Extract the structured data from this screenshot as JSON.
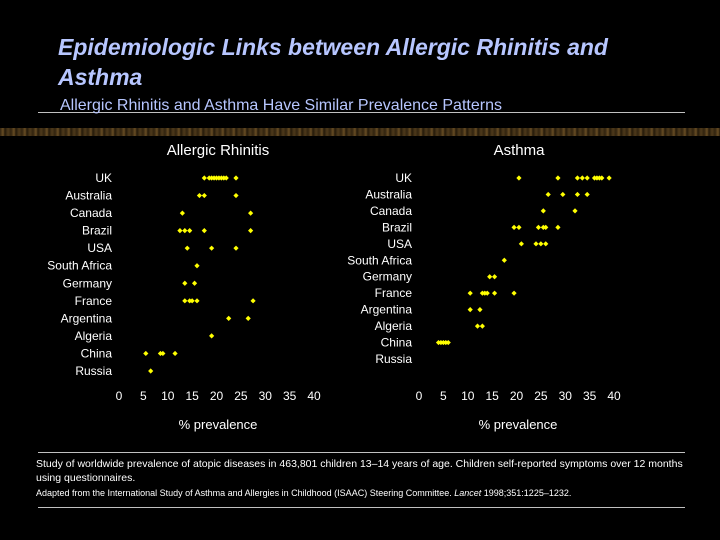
{
  "slide": {
    "title": "Epidemiologic Links between Allergic Rhinitis and Asthma",
    "subtitle": "Allergic Rhinitis and Asthma Have Similar Prevalence Patterns",
    "footnote": "Study of worldwide prevalence of atopic diseases in 463,801 children 13–14 years of age. Children self-reported symptoms over 12 months using questionnaires.",
    "source_prefix": "Adapted from the International Study of Asthma and Allergies in Childhood (ISAAC) Steering Committee. ",
    "source_journal": "Lancet",
    "source_citation": " 1998;351:1225–1232."
  },
  "colors": {
    "background": "#000000",
    "title": "#b7c6ff",
    "point": "#ffff00",
    "text": "#ffffff"
  },
  "chart_data": [
    {
      "type": "scatter",
      "title": "Allergic Rhinitis",
      "xlabel": "% prevalence",
      "xlim": [
        0,
        40
      ],
      "xticks": [
        0,
        5,
        10,
        15,
        20,
        25,
        30,
        35,
        40
      ],
      "categories": [
        "UK",
        "Australia",
        "Canada",
        "Brazil",
        "USA",
        "South Africa",
        "Germany",
        "France",
        "Argentina",
        "Algeria",
        "China",
        "Russia"
      ],
      "series": [
        {
          "category": "UK",
          "values": [
            17.5,
            18.5,
            19,
            19.5,
            20,
            20.5,
            21,
            21.5,
            22,
            24
          ]
        },
        {
          "category": "Australia",
          "values": [
            16.5,
            17.5,
            24
          ]
        },
        {
          "category": "Canada",
          "values": [
            13,
            27
          ]
        },
        {
          "category": "Brazil",
          "values": [
            12.5,
            13.5,
            14.5,
            17.5,
            27
          ]
        },
        {
          "category": "USA",
          "values": [
            14,
            19,
            24
          ]
        },
        {
          "category": "South Africa",
          "values": [
            16
          ]
        },
        {
          "category": "Germany",
          "values": [
            13.5,
            15.5
          ]
        },
        {
          "category": "France",
          "values": [
            13.5,
            14.5,
            15,
            16,
            27.5
          ]
        },
        {
          "category": "Argentina",
          "values": [
            22.5,
            26.5
          ]
        },
        {
          "category": "Algeria",
          "values": [
            19
          ]
        },
        {
          "category": "China",
          "values": [
            5.5,
            8.5,
            9,
            11.5
          ]
        },
        {
          "category": "Russia",
          "values": [
            6.5
          ]
        }
      ]
    },
    {
      "type": "scatter",
      "title": "Asthma",
      "xlabel": "% prevalence",
      "xlim": [
        0,
        40
      ],
      "xticks": [
        0,
        5,
        10,
        15,
        20,
        25,
        30,
        35,
        40
      ],
      "categories": [
        "UK",
        "Australia",
        "Canada",
        "Brazil",
        "USA",
        "South Africa",
        "Germany",
        "France",
        "Argentina",
        "Algeria",
        "China",
        "Russia"
      ],
      "series": [
        {
          "category": "UK",
          "values": [
            20.5,
            28.5,
            32.5,
            33.5,
            34.5,
            36,
            36.5,
            37,
            37.5,
            39
          ]
        },
        {
          "category": "Australia",
          "values": [
            26.5,
            29.5,
            32.5,
            34.5
          ]
        },
        {
          "category": "Canada",
          "values": [
            25.5,
            32
          ]
        },
        {
          "category": "Brazil",
          "values": [
            19.5,
            20.5,
            24.5,
            25.5,
            26,
            28.5
          ]
        },
        {
          "category": "USA",
          "values": [
            21,
            24,
            25,
            26
          ]
        },
        {
          "category": "South Africa",
          "values": [
            17.5
          ]
        },
        {
          "category": "Germany",
          "values": [
            14.5,
            15.5
          ]
        },
        {
          "category": "France",
          "values": [
            10.5,
            13,
            13.5,
            14,
            15.5,
            19.5
          ]
        },
        {
          "category": "Argentina",
          "values": [
            10.5,
            12.5
          ]
        },
        {
          "category": "Algeria",
          "values": [
            12,
            13
          ]
        },
        {
          "category": "China",
          "values": [
            4,
            4.5,
            5,
            5.5,
            6
          ]
        },
        {
          "category": "Russia",
          "values": []
        }
      ]
    }
  ]
}
